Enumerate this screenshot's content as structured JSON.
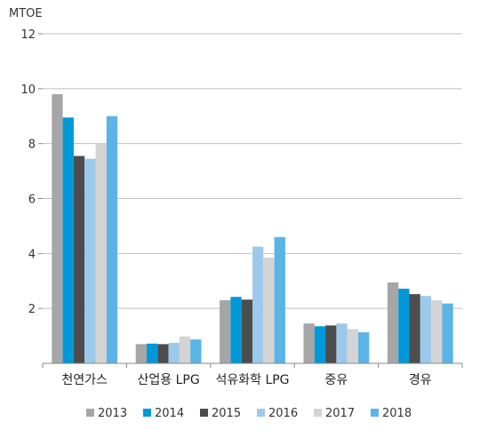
{
  "chart_data": {
    "type": "bar",
    "ylabel": "MTOE",
    "ylim": [
      0,
      12
    ],
    "yticks": [
      2,
      4,
      6,
      8,
      10,
      12
    ],
    "grid": true,
    "legend_position": "bottom",
    "categories": [
      "천연가스",
      "산업용 LPG",
      "석유화학 LPG",
      "중유",
      "경유"
    ],
    "series": [
      {
        "name": "2013",
        "color": "#a6a6a6",
        "values": [
          9.8,
          0.7,
          2.3,
          1.45,
          2.95
        ]
      },
      {
        "name": "2014",
        "color": "#0098d8",
        "values": [
          8.95,
          0.72,
          2.42,
          1.35,
          2.72
        ]
      },
      {
        "name": "2015",
        "color": "#4d4d4d",
        "values": [
          7.55,
          0.7,
          2.32,
          1.38,
          2.52
        ]
      },
      {
        "name": "2016",
        "color": "#9cc9ea",
        "values": [
          7.45,
          0.75,
          4.25,
          1.45,
          2.45
        ]
      },
      {
        "name": "2017",
        "color": "#d4d4d4",
        "values": [
          8.0,
          0.98,
          3.85,
          1.25,
          2.3
        ]
      },
      {
        "name": "2018",
        "color": "#5ab4e6",
        "values": [
          9.0,
          0.87,
          4.6,
          1.13,
          2.18
        ]
      }
    ]
  }
}
